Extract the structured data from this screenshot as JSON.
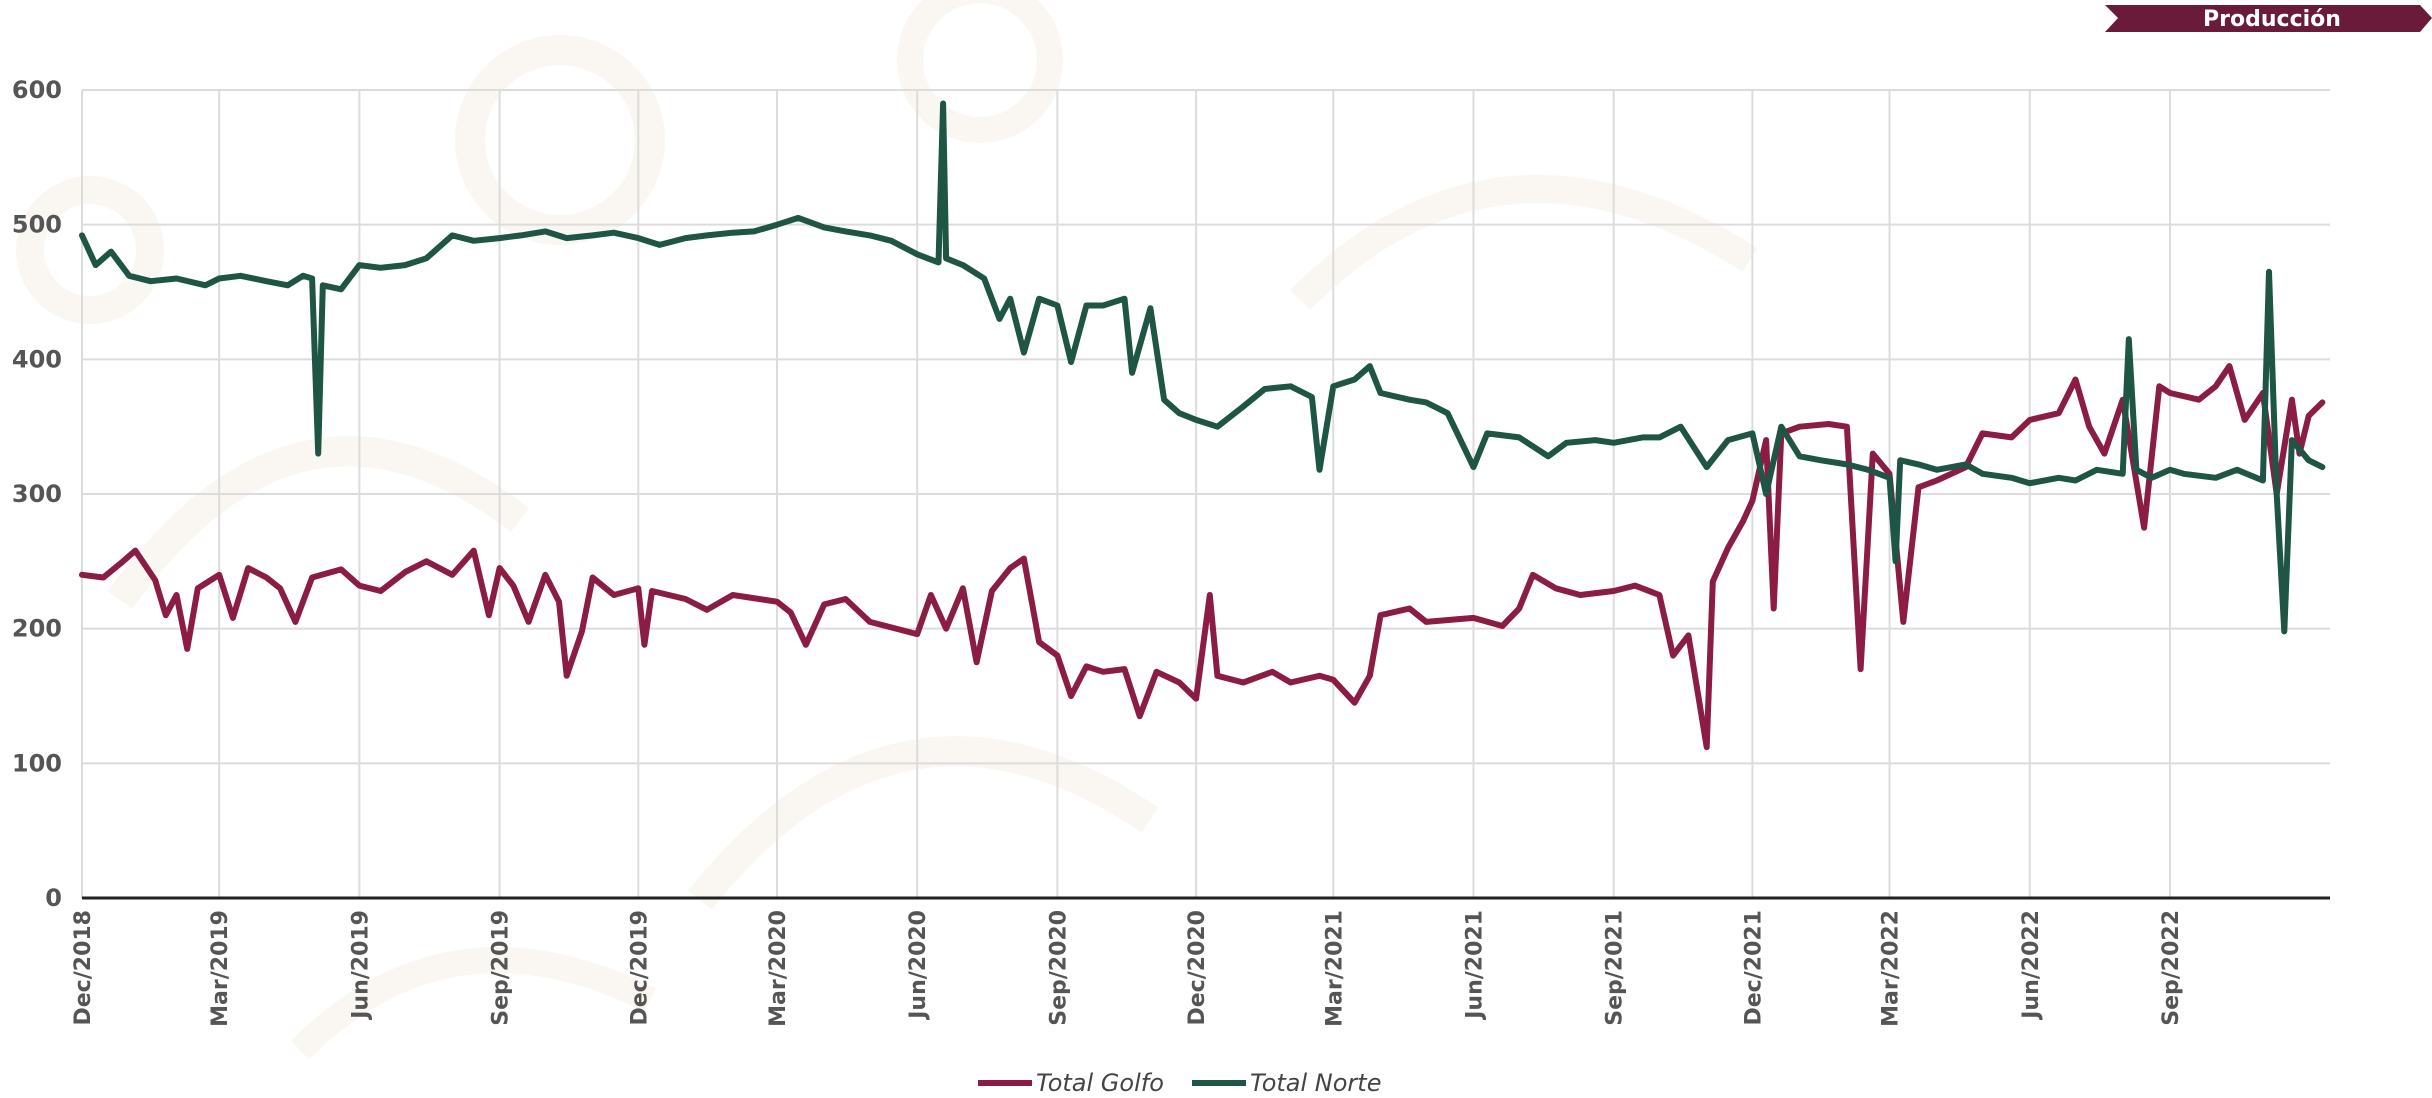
{
  "badge": {
    "label": "Producción",
    "color": "#6b1b3a"
  },
  "colors": {
    "golfo": "#8b1d45",
    "norte": "#1e5545",
    "grid": "#dcdcdc",
    "axis": "#222222"
  },
  "chart_data": {
    "type": "line",
    "title": "",
    "xlabel": "",
    "ylabel": "",
    "ylim": [
      0,
      600
    ],
    "yticks": [
      0,
      100,
      200,
      300,
      400,
      500,
      600
    ],
    "xlim": [
      "2018-12-01",
      "2022-12-15"
    ],
    "xticks": [
      "Dec/2018",
      "Mar/2019",
      "Jun/2019",
      "Sep/2019",
      "Dec/2019",
      "Mar/2020",
      "Jun/2020",
      "Sep/2020",
      "Dec/2020",
      "Mar/2021",
      "Jun/2021",
      "Sep/2021",
      "Dec/2021",
      "Mar/2022",
      "Jun/2022",
      "Sep/2022"
    ],
    "grid": true,
    "legend_position": "bottom-center",
    "series": [
      {
        "name": "Total Golfo",
        "color": "#8b1d45",
        "points": [
          [
            "2018-12-01",
            240
          ],
          [
            "2018-12-15",
            238
          ],
          [
            "2018-12-28",
            250
          ],
          [
            "2019-01-05",
            258
          ],
          [
            "2019-01-18",
            236
          ],
          [
            "2019-01-25",
            210
          ],
          [
            "2019-02-01",
            225
          ],
          [
            "2019-02-08",
            185
          ],
          [
            "2019-02-15",
            230
          ],
          [
            "2019-03-01",
            240
          ],
          [
            "2019-03-10",
            208
          ],
          [
            "2019-03-20",
            245
          ],
          [
            "2019-04-01",
            238
          ],
          [
            "2019-04-10",
            230
          ],
          [
            "2019-04-20",
            205
          ],
          [
            "2019-05-01",
            238
          ],
          [
            "2019-05-20",
            244
          ],
          [
            "2019-06-01",
            232
          ],
          [
            "2019-06-15",
            228
          ],
          [
            "2019-07-01",
            242
          ],
          [
            "2019-07-15",
            250
          ],
          [
            "2019-08-01",
            240
          ],
          [
            "2019-08-15",
            258
          ],
          [
            "2019-08-25",
            210
          ],
          [
            "2019-09-01",
            245
          ],
          [
            "2019-09-10",
            232
          ],
          [
            "2019-09-20",
            205
          ],
          [
            "2019-10-01",
            240
          ],
          [
            "2019-10-10",
            220
          ],
          [
            "2019-10-15",
            165
          ],
          [
            "2019-10-25",
            198
          ],
          [
            "2019-11-01",
            238
          ],
          [
            "2019-11-15",
            225
          ],
          [
            "2019-12-01",
            230
          ],
          [
            "2019-12-05",
            188
          ],
          [
            "2019-12-10",
            228
          ],
          [
            "2020-01-01",
            222
          ],
          [
            "2020-01-15",
            214
          ],
          [
            "2020-02-01",
            225
          ],
          [
            "2020-03-01",
            220
          ],
          [
            "2020-03-10",
            212
          ],
          [
            "2020-03-20",
            188
          ],
          [
            "2020-04-01",
            218
          ],
          [
            "2020-04-15",
            222
          ],
          [
            "2020-05-01",
            205
          ],
          [
            "2020-06-01",
            196
          ],
          [
            "2020-06-10",
            225
          ],
          [
            "2020-06-20",
            200
          ],
          [
            "2020-07-01",
            230
          ],
          [
            "2020-07-10",
            175
          ],
          [
            "2020-07-20",
            228
          ],
          [
            "2020-08-01",
            245
          ],
          [
            "2020-08-10",
            252
          ],
          [
            "2020-08-20",
            190
          ],
          [
            "2020-09-01",
            180
          ],
          [
            "2020-09-10",
            150
          ],
          [
            "2020-09-20",
            172
          ],
          [
            "2020-10-01",
            168
          ],
          [
            "2020-10-15",
            170
          ],
          [
            "2020-10-25",
            135
          ],
          [
            "2020-11-05",
            168
          ],
          [
            "2020-11-20",
            160
          ],
          [
            "2020-12-01",
            148
          ],
          [
            "2020-12-10",
            225
          ],
          [
            "2020-12-15",
            165
          ],
          [
            "2021-01-01",
            160
          ],
          [
            "2021-01-20",
            168
          ],
          [
            "2021-02-01",
            160
          ],
          [
            "2021-02-20",
            165
          ],
          [
            "2021-03-01",
            162
          ],
          [
            "2021-03-15",
            145
          ],
          [
            "2021-03-25",
            165
          ],
          [
            "2021-04-01",
            210
          ],
          [
            "2021-04-20",
            215
          ],
          [
            "2021-05-01",
            205
          ],
          [
            "2021-06-01",
            208
          ],
          [
            "2021-06-20",
            202
          ],
          [
            "2021-07-01",
            215
          ],
          [
            "2021-07-10",
            240
          ],
          [
            "2021-07-25",
            230
          ],
          [
            "2021-08-10",
            225
          ],
          [
            "2021-09-01",
            228
          ],
          [
            "2021-09-15",
            232
          ],
          [
            "2021-10-01",
            225
          ],
          [
            "2021-10-10",
            180
          ],
          [
            "2021-10-20",
            195
          ],
          [
            "2021-11-01",
            112
          ],
          [
            "2021-11-05",
            235
          ],
          [
            "2021-11-15",
            260
          ],
          [
            "2021-11-25",
            280
          ],
          [
            "2021-12-01",
            295
          ],
          [
            "2021-12-10",
            340
          ],
          [
            "2021-12-15",
            215
          ],
          [
            "2021-12-20",
            345
          ],
          [
            "2022-01-01",
            350
          ],
          [
            "2022-01-20",
            352
          ],
          [
            "2022-02-01",
            350
          ],
          [
            "2022-02-10",
            170
          ],
          [
            "2022-02-18",
            330
          ],
          [
            "2022-03-01",
            315
          ],
          [
            "2022-03-10",
            205
          ],
          [
            "2022-03-20",
            305
          ],
          [
            "2022-04-01",
            310
          ],
          [
            "2022-04-20",
            320
          ],
          [
            "2022-05-01",
            345
          ],
          [
            "2022-05-20",
            342
          ],
          [
            "2022-06-01",
            355
          ],
          [
            "2022-06-20",
            360
          ],
          [
            "2022-07-01",
            385
          ],
          [
            "2022-07-10",
            350
          ],
          [
            "2022-07-20",
            330
          ],
          [
            "2022-08-01",
            370
          ],
          [
            "2022-08-15",
            275
          ],
          [
            "2022-08-25",
            380
          ],
          [
            "2022-09-01",
            375
          ],
          [
            "2022-09-20",
            370
          ],
          [
            "2022-10-01",
            380
          ],
          [
            "2022-10-10",
            395
          ],
          [
            "2022-10-20",
            355
          ],
          [
            "2022-11-01",
            375
          ],
          [
            "2022-11-10",
            300
          ],
          [
            "2022-11-20",
            370
          ],
          [
            "2022-11-25",
            330
          ],
          [
            "2022-12-01",
            358
          ],
          [
            "2022-12-10",
            368
          ]
        ]
      },
      {
        "name": "Total Norte",
        "color": "#1e5545",
        "points": [
          [
            "2018-12-01",
            492
          ],
          [
            "2018-12-10",
            470
          ],
          [
            "2018-12-20",
            480
          ],
          [
            "2019-01-01",
            462
          ],
          [
            "2019-01-15",
            458
          ],
          [
            "2019-02-01",
            460
          ],
          [
            "2019-02-20",
            455
          ],
          [
            "2019-03-01",
            460
          ],
          [
            "2019-03-15",
            462
          ],
          [
            "2019-04-01",
            458
          ],
          [
            "2019-04-15",
            455
          ],
          [
            "2019-04-25",
            462
          ],
          [
            "2019-05-01",
            460
          ],
          [
            "2019-05-05",
            330
          ],
          [
            "2019-05-08",
            455
          ],
          [
            "2019-05-20",
            452
          ],
          [
            "2019-06-01",
            470
          ],
          [
            "2019-06-15",
            468
          ],
          [
            "2019-07-01",
            470
          ],
          [
            "2019-07-15",
            475
          ],
          [
            "2019-08-01",
            492
          ],
          [
            "2019-08-15",
            488
          ],
          [
            "2019-09-01",
            490
          ],
          [
            "2019-09-15",
            492
          ],
          [
            "2019-10-01",
            495
          ],
          [
            "2019-10-15",
            490
          ],
          [
            "2019-11-01",
            492
          ],
          [
            "2019-11-15",
            494
          ],
          [
            "2019-12-01",
            490
          ],
          [
            "2019-12-15",
            485
          ],
          [
            "2020-01-01",
            490
          ],
          [
            "2020-01-15",
            492
          ],
          [
            "2020-02-01",
            494
          ],
          [
            "2020-02-15",
            495
          ],
          [
            "2020-03-01",
            500
          ],
          [
            "2020-03-15",
            505
          ],
          [
            "2020-04-01",
            498
          ],
          [
            "2020-04-15",
            495
          ],
          [
            "2020-05-01",
            492
          ],
          [
            "2020-05-15",
            488
          ],
          [
            "2020-06-01",
            478
          ],
          [
            "2020-06-15",
            472
          ],
          [
            "2020-06-18",
            590
          ],
          [
            "2020-06-20",
            475
          ],
          [
            "2020-07-01",
            470
          ],
          [
            "2020-07-15",
            460
          ],
          [
            "2020-07-25",
            430
          ],
          [
            "2020-08-01",
            445
          ],
          [
            "2020-08-10",
            405
          ],
          [
            "2020-08-20",
            445
          ],
          [
            "2020-09-01",
            440
          ],
          [
            "2020-09-10",
            398
          ],
          [
            "2020-09-20",
            440
          ],
          [
            "2020-10-01",
            440
          ],
          [
            "2020-10-15",
            445
          ],
          [
            "2020-10-20",
            390
          ],
          [
            "2020-11-01",
            438
          ],
          [
            "2020-11-10",
            370
          ],
          [
            "2020-11-20",
            360
          ],
          [
            "2020-12-01",
            355
          ],
          [
            "2020-12-15",
            350
          ],
          [
            "2021-01-01",
            365
          ],
          [
            "2021-01-15",
            378
          ],
          [
            "2021-02-01",
            380
          ],
          [
            "2021-02-15",
            372
          ],
          [
            "2021-02-20",
            318
          ],
          [
            "2021-03-01",
            380
          ],
          [
            "2021-03-15",
            385
          ],
          [
            "2021-03-25",
            395
          ],
          [
            "2021-04-01",
            375
          ],
          [
            "2021-04-20",
            370
          ],
          [
            "2021-05-01",
            368
          ],
          [
            "2021-05-15",
            360
          ],
          [
            "2021-06-01",
            320
          ],
          [
            "2021-06-10",
            345
          ],
          [
            "2021-07-01",
            342
          ],
          [
            "2021-07-20",
            328
          ],
          [
            "2021-08-01",
            338
          ],
          [
            "2021-08-20",
            340
          ],
          [
            "2021-09-01",
            338
          ],
          [
            "2021-09-20",
            342
          ],
          [
            "2021-10-01",
            342
          ],
          [
            "2021-10-15",
            350
          ],
          [
            "2021-11-01",
            320
          ],
          [
            "2021-11-15",
            340
          ],
          [
            "2021-12-01",
            345
          ],
          [
            "2021-12-10",
            300
          ],
          [
            "2021-12-20",
            350
          ],
          [
            "2022-01-01",
            328
          ],
          [
            "2022-01-15",
            325
          ],
          [
            "2022-02-01",
            322
          ],
          [
            "2022-02-15",
            318
          ],
          [
            "2022-03-01",
            312
          ],
          [
            "2022-03-05",
            250
          ],
          [
            "2022-03-08",
            325
          ],
          [
            "2022-03-20",
            322
          ],
          [
            "2022-04-01",
            318
          ],
          [
            "2022-04-20",
            322
          ],
          [
            "2022-05-01",
            315
          ],
          [
            "2022-05-20",
            312
          ],
          [
            "2022-06-01",
            308
          ],
          [
            "2022-06-20",
            312
          ],
          [
            "2022-07-01",
            310
          ],
          [
            "2022-07-15",
            318
          ],
          [
            "2022-08-01",
            315
          ],
          [
            "2022-08-05",
            415
          ],
          [
            "2022-08-10",
            318
          ],
          [
            "2022-08-20",
            312
          ],
          [
            "2022-09-01",
            318
          ],
          [
            "2022-09-10",
            315
          ],
          [
            "2022-10-01",
            312
          ],
          [
            "2022-10-15",
            318
          ],
          [
            "2022-11-01",
            310
          ],
          [
            "2022-11-05",
            465
          ],
          [
            "2022-11-10",
            300
          ],
          [
            "2022-11-15",
            198
          ],
          [
            "2022-11-20",
            340
          ],
          [
            "2022-12-01",
            325
          ],
          [
            "2022-12-10",
            320
          ]
        ]
      }
    ]
  }
}
